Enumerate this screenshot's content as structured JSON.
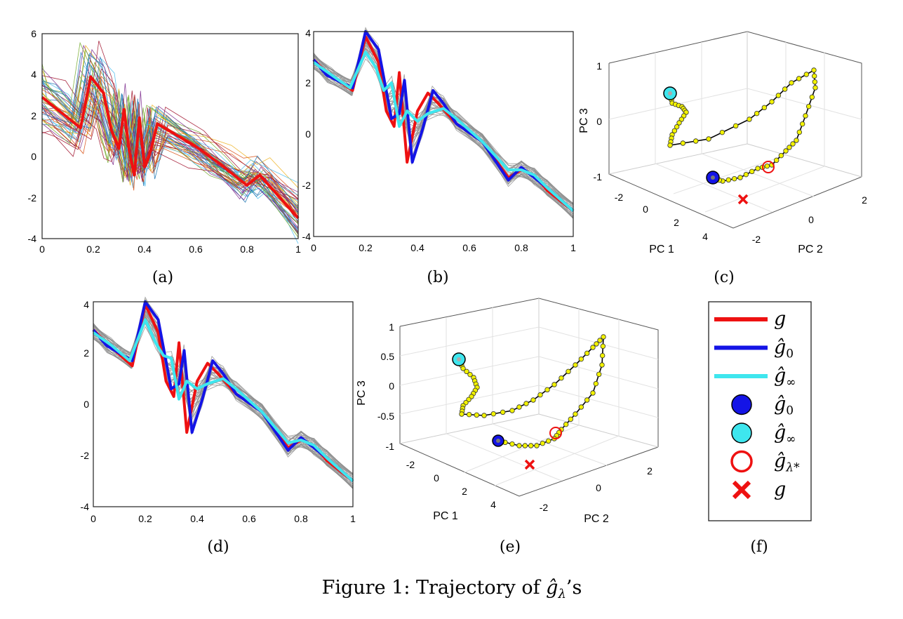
{
  "colors": {
    "g": "#ee1111",
    "g_hat_0": "#1414e6",
    "g_hat_inf": "#3ee6ee",
    "trajectory_point": "#f2f200",
    "trajectory_line": "#000000",
    "gray_curves": "#8c8c8c"
  },
  "panel_labels": [
    "(a)",
    "(b)",
    "(c)",
    "(d)",
    "(e)",
    "(f)"
  ],
  "caption": {
    "prefix": "Figure 1: Trajectory of ",
    "math": "ĝ",
    "sub": "λ",
    "suffix": "’s"
  },
  "legend": {
    "entries": [
      {
        "marker": "line",
        "color": "#ee1111",
        "base": "g",
        "sub": ""
      },
      {
        "marker": "line",
        "color": "#1414e6",
        "base": "ĝ",
        "sub": "0"
      },
      {
        "marker": "line",
        "color": "#3ee6ee",
        "base": "ĝ",
        "sub": "∞"
      },
      {
        "marker": "filled-circle",
        "color": "#1414e6",
        "base": "ĝ",
        "sub": "0"
      },
      {
        "marker": "filled-circle",
        "color": "#3ee6ee",
        "base": "ĝ",
        "sub": "∞"
      },
      {
        "marker": "open-circle",
        "color": "#ee1111",
        "base": "ĝ",
        "sub": "λ*"
      },
      {
        "marker": "cross",
        "color": "#ee1111",
        "base": "g",
        "sub": ""
      }
    ]
  },
  "chart_data": [
    {
      "panel": "(a)",
      "type": "line",
      "xlim": [
        0,
        1
      ],
      "ylim": [
        -4,
        6
      ],
      "xticks": [
        "0",
        "0.2",
        "0.4",
        "0.6",
        "0.8",
        "1"
      ],
      "yticks": [
        "-4",
        "-2",
        "0",
        "2",
        "4",
        "6"
      ],
      "series": [
        {
          "role": "g",
          "color": "#ee1111",
          "x": [
            0,
            0.06,
            0.15,
            0.19,
            0.24,
            0.27,
            0.3,
            0.32,
            0.34,
            0.36,
            0.38,
            0.4,
            0.42,
            0.45,
            0.6,
            0.7,
            0.8,
            0.85,
            1.0
          ],
          "y": [
            2.9,
            2.3,
            1.4,
            3.9,
            3.1,
            1.3,
            0.4,
            2.3,
            0.3,
            -0.9,
            1.9,
            -0.5,
            0.1,
            1.6,
            0.5,
            -0.4,
            -1.4,
            -0.9,
            -3.0
          ]
        }
      ],
      "note_sample_curves": "many thin multicolored sample curves around g"
    },
    {
      "panel": "(b)",
      "type": "line",
      "xlim": [
        0,
        1
      ],
      "ylim": [
        -4,
        4
      ],
      "xticks": [
        "0",
        "0.2",
        "0.4",
        "0.6",
        "0.8",
        "1"
      ],
      "yticks": [
        "-4",
        "-2",
        "0",
        "2",
        "4"
      ],
      "series": [
        {
          "role": "g",
          "color": "#ee1111",
          "x": [
            0,
            0.05,
            0.15,
            0.2,
            0.25,
            0.28,
            0.31,
            0.33,
            0.36,
            0.4,
            0.44,
            0.48,
            0.55,
            0.65,
            0.75,
            0.8,
            0.85,
            0.9,
            1.0
          ],
          "y": [
            2.9,
            2.4,
            1.7,
            3.8,
            2.8,
            0.9,
            0.3,
            2.4,
            -1.1,
            0.9,
            1.6,
            1.2,
            0.4,
            -0.3,
            -1.7,
            -1.4,
            -1.6,
            -2.2,
            -3.0
          ]
        },
        {
          "role": "g_hat_0",
          "color": "#1414e6",
          "x": [
            0,
            0.05,
            0.15,
            0.2,
            0.25,
            0.3,
            0.33,
            0.35,
            0.38,
            0.42,
            0.46,
            0.5,
            0.55,
            0.65,
            0.75,
            0.8,
            0.85,
            0.9,
            1.0
          ],
          "y": [
            2.9,
            2.3,
            1.8,
            4.0,
            3.3,
            0.6,
            0.8,
            2.1,
            -1.1,
            0.2,
            1.7,
            1.2,
            0.4,
            -0.3,
            -1.8,
            -1.3,
            -1.7,
            -2.1,
            -3.0
          ]
        },
        {
          "role": "g_hat_inf",
          "color": "#3ee6ee",
          "x": [
            0,
            0.07,
            0.14,
            0.2,
            0.24,
            0.27,
            0.3,
            0.33,
            0.36,
            0.4,
            0.44,
            0.5,
            0.55,
            0.65,
            0.75,
            0.8,
            0.85,
            0.9,
            1.0
          ],
          "y": [
            2.8,
            2.3,
            1.8,
            3.2,
            2.6,
            1.7,
            2.0,
            0.3,
            0.9,
            0.5,
            0.8,
            1.0,
            0.6,
            -0.3,
            -1.4,
            -1.4,
            -1.6,
            -2.1,
            -3.0
          ]
        }
      ]
    },
    {
      "panel": "(c)",
      "type": "scatter",
      "xlabel": "PC 1",
      "ylabel": "PC 2",
      "zlabel": "PC 3",
      "pc1_ticks": [
        "-2",
        "0",
        "2",
        "4"
      ],
      "pc2_ticks": [
        "-2",
        "0",
        "2"
      ],
      "pc3_ticks": [
        "-1",
        "0",
        "1"
      ]
    },
    {
      "panel": "(d)",
      "type": "line",
      "xlim": [
        0,
        1
      ],
      "ylim": [
        -4,
        4
      ],
      "xticks": [
        "0",
        "0.2",
        "0.4",
        "0.6",
        "0.8",
        "1"
      ],
      "yticks": [
        "-4",
        "-2",
        "0",
        "2",
        "4"
      ],
      "series": [
        {
          "role": "g",
          "color": "#ee1111",
          "x": [
            0,
            0.05,
            0.15,
            0.2,
            0.25,
            0.28,
            0.31,
            0.33,
            0.36,
            0.4,
            0.44,
            0.48,
            0.55,
            0.65,
            0.75,
            0.8,
            0.85,
            0.9,
            1.0
          ],
          "y": [
            2.9,
            2.4,
            1.5,
            3.9,
            2.8,
            0.9,
            0.3,
            2.4,
            -1.1,
            0.9,
            1.6,
            1.2,
            0.4,
            -0.3,
            -1.7,
            -1.4,
            -1.6,
            -2.2,
            -3.0
          ]
        },
        {
          "role": "g_hat_0",
          "color": "#1414e6",
          "x": [
            0,
            0.05,
            0.15,
            0.2,
            0.25,
            0.3,
            0.33,
            0.35,
            0.38,
            0.42,
            0.46,
            0.5,
            0.55,
            0.65,
            0.75,
            0.8,
            0.85,
            0.9,
            1.0
          ],
          "y": [
            2.9,
            2.3,
            1.7,
            4.0,
            3.3,
            0.6,
            0.8,
            2.1,
            -1.1,
            0.2,
            1.7,
            1.2,
            0.4,
            -0.3,
            -1.8,
            -1.3,
            -1.7,
            -2.1,
            -3.0
          ]
        },
        {
          "role": "g_hat_inf",
          "color": "#3ee6ee",
          "x": [
            0,
            0.07,
            0.14,
            0.2,
            0.24,
            0.27,
            0.3,
            0.33,
            0.36,
            0.4,
            0.44,
            0.5,
            0.55,
            0.65,
            0.75,
            0.8,
            0.85,
            0.9,
            1.0
          ],
          "y": [
            2.8,
            2.3,
            1.7,
            3.3,
            2.4,
            1.9,
            1.8,
            0.2,
            0.9,
            0.6,
            0.8,
            1.0,
            0.6,
            -0.3,
            -1.5,
            -1.4,
            -1.6,
            -2.1,
            -3.0
          ]
        }
      ]
    },
    {
      "panel": "(e)",
      "type": "scatter",
      "xlabel": "PC 1",
      "ylabel": "PC 2",
      "zlabel": "PC 3",
      "pc1_ticks": [
        "-2",
        "0",
        "2",
        "4"
      ],
      "pc2_ticks": [
        "-2",
        "0",
        "2"
      ],
      "pc3_ticks": [
        "-1",
        "-0.5",
        "0",
        "0.5",
        "1"
      ]
    }
  ]
}
